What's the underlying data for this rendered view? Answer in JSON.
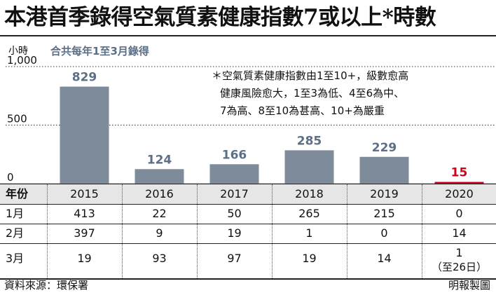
{
  "headline": "本港首季錄得空氣質素健康指數7或以上*時數",
  "unit": "小時",
  "subtitle": "合共每年1至3月錄得",
  "note": {
    "line1": "＊空氣質素健康指數由1至10+，級數愈高",
    "line2": "健康風險愈大，1至3為低、4至6為中、",
    "line3": "7為高、8至10為甚高、10+為嚴重"
  },
  "chart_data": {
    "type": "bar",
    "categories": [
      "2015",
      "2016",
      "2017",
      "2018",
      "2019",
      "2020"
    ],
    "values": [
      829,
      124,
      166,
      285,
      229,
      15
    ],
    "value_labels": [
      "829",
      "124",
      "166",
      "285",
      "229",
      "15"
    ],
    "ylim": [
      0,
      1000
    ],
    "yticks": [
      0,
      500,
      1000
    ],
    "ytick_labels": [
      "0",
      "500",
      "1,000"
    ],
    "grid": "dotted-horizontal",
    "colors": {
      "bar": "#7d8b9b",
      "highlight_bar": "#d0021b",
      "label": "#5b6f86",
      "highlight_label": "#d0021b"
    },
    "highlight_index": 5
  },
  "table": {
    "header_label": "年份",
    "years": [
      "2015",
      "2016",
      "2017",
      "2018",
      "2019",
      "2020"
    ],
    "rows": [
      {
        "label": "1月",
        "values": [
          "413",
          "22",
          "50",
          "265",
          "215",
          "0"
        ]
      },
      {
        "label": "2月",
        "values": [
          "397",
          "9",
          "19",
          "1",
          "0",
          "14"
        ]
      },
      {
        "label": "3月",
        "values": [
          "19",
          "93",
          "97",
          "19",
          "14",
          "1"
        ]
      }
    ],
    "footnote_2020": "（至26日）"
  },
  "source": "資料來源：環保署",
  "credit": "明報製圖"
}
